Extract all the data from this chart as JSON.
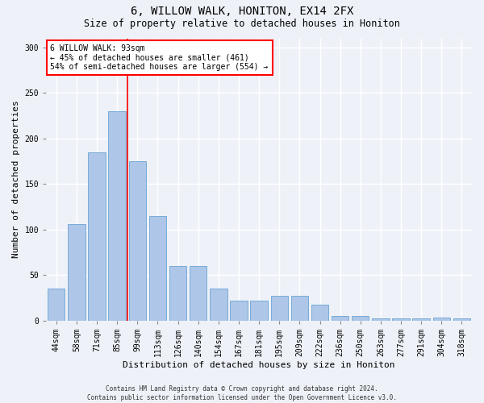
{
  "title1": "6, WILLOW WALK, HONITON, EX14 2FX",
  "title2": "Size of property relative to detached houses in Honiton",
  "xlabel": "Distribution of detached houses by size in Honiton",
  "ylabel": "Number of detached properties",
  "categories": [
    "44sqm",
    "58sqm",
    "71sqm",
    "85sqm",
    "99sqm",
    "113sqm",
    "126sqm",
    "140sqm",
    "154sqm",
    "167sqm",
    "181sqm",
    "195sqm",
    "209sqm",
    "222sqm",
    "236sqm",
    "250sqm",
    "263sqm",
    "277sqm",
    "291sqm",
    "304sqm",
    "318sqm"
  ],
  "values": [
    35,
    106,
    185,
    230,
    175,
    115,
    60,
    60,
    35,
    22,
    22,
    27,
    27,
    17,
    5,
    5,
    2,
    2,
    2,
    3,
    2
  ],
  "bar_color": "#aec6e8",
  "bar_edge_color": "#6aa3d4",
  "property_line_bar_index": 4,
  "annotation_text": "6 WILLOW WALK: 93sqm\n← 45% of detached houses are smaller (461)\n54% of semi-detached houses are larger (554) →",
  "annotation_box_color": "white",
  "annotation_border_color": "red",
  "line_color": "red",
  "background_color": "#eef2f8",
  "grid_color": "white",
  "footer": "Contains HM Land Registry data © Crown copyright and database right 2024.\nContains public sector information licensed under the Open Government Licence v3.0.",
  "ylim": [
    0,
    310
  ],
  "yticks": [
    0,
    50,
    100,
    150,
    200,
    250,
    300
  ],
  "title1_fontsize": 10,
  "title2_fontsize": 8.5,
  "tick_fontsize": 7,
  "ylabel_fontsize": 8,
  "xlabel_fontsize": 8,
  "footer_fontsize": 5.5,
  "annot_fontsize": 7
}
